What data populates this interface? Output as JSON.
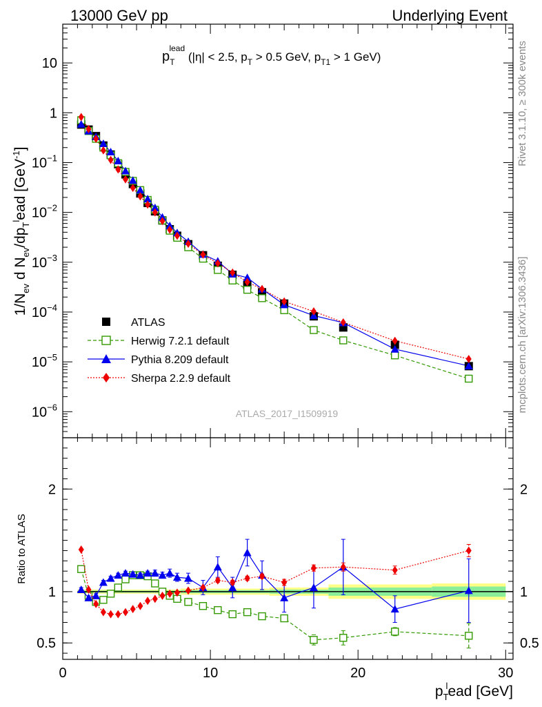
{
  "header": {
    "left": "13000 GeV pp",
    "right": "Underlying Event"
  },
  "side_labels": {
    "rivet": "Rivet 3.1.10, ≥ 300k events",
    "mcplots": "mcplots.cern.ch [arXiv:1306.3436]"
  },
  "watermark": "ATLAS_2017_I1509919",
  "chart_data": [
    {
      "type": "scatter",
      "panel": "main",
      "title_parts": {
        "p": "p",
        "sup": "lead",
        "sub": "T",
        "cond1": " (|η| < 2.5, p",
        "cond1_sub": "T",
        "cond2": " > 0.5 GeV, p",
        "cond2_sub": "T1",
        "cond3": " > 1 GeV)"
      },
      "ylabel": "1/N_ev d N_ev/dp_T^lead [GeV^-1]",
      "ylabel_parts": {
        "a": "1/N",
        "a_sub": "ev",
        "b": " d N",
        "b_sub": "ev",
        "c": "/dp",
        "c_sub": "T",
        "c_sup": "l",
        "d": "ead [GeV",
        "d_sup": "-1",
        "e": "]"
      },
      "yscale": "log",
      "ylim": [
        3e-07,
        60
      ],
      "xlim": [
        0,
        30.5
      ],
      "y_ticks": [
        {
          "v": 10,
          "label": "10"
        },
        {
          "v": 1,
          "label": "1"
        },
        {
          "v": 0.1,
          "m": "10",
          "e": "−1"
        },
        {
          "v": 0.01,
          "m": "10",
          "e": "−2"
        },
        {
          "v": 0.001,
          "m": "10",
          "e": "−3"
        },
        {
          "v": 0.0001,
          "m": "10",
          "e": "−4"
        },
        {
          "v": 1e-05,
          "m": "10",
          "e": "−5"
        },
        {
          "v": 1e-06,
          "m": "10",
          "e": "−6"
        }
      ],
      "x": [
        1.25,
        1.75,
        2.25,
        2.75,
        3.25,
        3.75,
        4.25,
        4.75,
        5.25,
        5.75,
        6.25,
        6.75,
        7.25,
        7.75,
        8.5,
        9.5,
        10.5,
        11.5,
        12.5,
        13.5,
        15.0,
        17.0,
        19.0,
        22.5,
        27.5
      ],
      "series": [
        {
          "name": "ATLAS",
          "color": "#000000",
          "marker": "square-filled",
          "line": "none",
          "values": [
            0.58,
            0.46,
            0.34,
            0.22,
            0.145,
            0.093,
            0.058,
            0.037,
            0.024,
            0.0155,
            0.0105,
            0.0069,
            0.0046,
            0.0034,
            0.0023,
            0.00138,
            0.00085,
            0.00056,
            0.00035,
            0.00025,
            0.000148,
            8.2e-05,
            4.9e-05,
            2.2e-05,
            8.2e-06
          ]
        },
        {
          "name": "Herwig 7.2.1 default",
          "color": "#339900",
          "marker": "square-open",
          "line": "dashed",
          "values": [
            0.71,
            0.43,
            0.3,
            0.2,
            0.14,
            0.097,
            0.065,
            0.043,
            0.028,
            0.0178,
            0.0113,
            0.0069,
            0.0043,
            0.0031,
            0.002,
            0.00118,
            0.0007,
            0.00043,
            0.00028,
            0.00019,
            0.000109,
            4.35e-05,
            2.7e-05,
            1.35e-05,
            4.6e-06
          ]
        },
        {
          "name": "Pythia 8.209 default",
          "color": "#0000ee",
          "marker": "triangle-filled",
          "line": "solid",
          "values": [
            0.59,
            0.43,
            0.33,
            0.24,
            0.164,
            0.108,
            0.068,
            0.044,
            0.028,
            0.0186,
            0.0124,
            0.008,
            0.0054,
            0.0039,
            0.0026,
            0.00144,
            0.00105,
            0.00058,
            0.00049,
            0.00029,
            0.00014,
            8.5e-05,
            6.1e-05,
            1.8e-05,
            8.3e-06
          ]
        },
        {
          "name": "Sherpa 2.2.9 default",
          "color": "#ee0000",
          "marker": "diamond-filled",
          "line": "dotted",
          "values": [
            0.82,
            0.47,
            0.3,
            0.176,
            0.113,
            0.073,
            0.046,
            0.031,
            0.021,
            0.0143,
            0.01,
            0.0067,
            0.0045,
            0.0034,
            0.00235,
            0.00142,
            0.00095,
            0.00062,
            0.0004,
            0.00029,
            0.000163,
            0.000103,
            6.2e-05,
            2.65e-05,
            1.14e-05
          ]
        }
      ],
      "legend_position": "lower-left"
    },
    {
      "type": "scatter",
      "panel": "ratio",
      "ylabel": "Ratio to ATLAS",
      "xlabel": "p_T^lead [GeV]",
      "xlabel_parts": {
        "a": "p",
        "a_sub": "T",
        "a_sup": "l",
        "b": "ead [GeV]"
      },
      "ylim": [
        0.34,
        2.5
      ],
      "xlim": [
        0,
        30.5
      ],
      "y_ticks": [
        {
          "v": 0.5,
          "label": "0.5"
        },
        {
          "v": 1,
          "label": "1"
        },
        {
          "v": 2,
          "label": "2"
        }
      ],
      "x_ticks": [
        {
          "v": 0,
          "label": "0"
        },
        {
          "v": 10,
          "label": "10"
        },
        {
          "v": 20,
          "label": "20"
        },
        {
          "v": 30,
          "label": "30"
        }
      ],
      "x": [
        1.25,
        1.75,
        2.25,
        2.75,
        3.25,
        3.75,
        4.25,
        4.75,
        5.25,
        5.75,
        6.25,
        6.75,
        7.25,
        7.75,
        8.5,
        9.5,
        10.5,
        11.5,
        12.5,
        13.5,
        15.0,
        17.0,
        19.0,
        22.5,
        27.5
      ],
      "uncertainty_band": {
        "stat_color": "#88ee99",
        "total_color": "#ffff88",
        "bins": [
          {
            "x0": 1.0,
            "x1": 8.0,
            "stat": 0.01,
            "total": 0.02
          },
          {
            "x0": 8.0,
            "x1": 14.0,
            "stat": 0.015,
            "total": 0.03
          },
          {
            "x0": 14.0,
            "x1": 18.0,
            "stat": 0.02,
            "total": 0.04
          },
          {
            "x0": 18.0,
            "x1": 25.0,
            "stat": 0.04,
            "total": 0.07
          },
          {
            "x0": 25.0,
            "x1": 30.0,
            "stat": 0.05,
            "total": 0.08
          }
        ]
      },
      "series": [
        {
          "name": "Herwig 7.2.1 default",
          "color": "#339900",
          "marker": "square-open",
          "line": "dashed",
          "values": [
            1.22,
            0.96,
            0.9,
            0.92,
            0.98,
            1.04,
            1.12,
            1.16,
            1.16,
            1.15,
            1.08,
            1.0,
            0.96,
            0.93,
            0.9,
            0.86,
            0.82,
            0.78,
            0.8,
            0.76,
            0.74,
            0.53,
            0.55,
            0.61,
            0.57
          ],
          "err": [
            0.01,
            0.01,
            0.01,
            0.01,
            0.01,
            0.01,
            0.01,
            0.01,
            0.01,
            0.01,
            0.01,
            0.01,
            0.01,
            0.01,
            0.01,
            0.01,
            0.015,
            0.02,
            0.025,
            0.03,
            0.03,
            0.05,
            0.07,
            0.04,
            0.12
          ]
        },
        {
          "name": "Pythia 8.209 default",
          "color": "#0000ee",
          "marker": "triangle-filled",
          "line": "solid",
          "values": [
            1.02,
            0.94,
            0.96,
            1.09,
            1.13,
            1.16,
            1.18,
            1.17,
            1.16,
            1.18,
            1.18,
            1.16,
            1.18,
            1.14,
            1.13,
            1.04,
            1.24,
            1.04,
            1.38,
            1.16,
            0.94,
            1.04,
            1.24,
            0.83,
            1.01
          ],
          "err": [
            0.02,
            0.02,
            0.02,
            0.02,
            0.02,
            0.02,
            0.02,
            0.02,
            0.02,
            0.02,
            0.03,
            0.03,
            0.04,
            0.04,
            0.05,
            0.07,
            0.1,
            0.1,
            0.13,
            0.14,
            0.14,
            0.2,
            0.27,
            0.13,
            0.31
          ]
        },
        {
          "name": "Sherpa 2.2.9 default",
          "color": "#ee0000",
          "marker": "diamond-filled",
          "line": "dotted",
          "values": [
            1.41,
            1.02,
            0.88,
            0.8,
            0.78,
            0.78,
            0.8,
            0.83,
            0.86,
            0.91,
            0.93,
            0.96,
            0.98,
            0.99,
            1.01,
            1.04,
            1.11,
            1.09,
            1.13,
            1.15,
            1.09,
            1.23,
            1.24,
            1.21,
            1.4
          ],
          "err": [
            0.01,
            0.01,
            0.01,
            0.01,
            0.01,
            0.01,
            0.01,
            0.01,
            0.01,
            0.01,
            0.01,
            0.01,
            0.01,
            0.01,
            0.01,
            0.015,
            0.02,
            0.02,
            0.02,
            0.02,
            0.03,
            0.03,
            0.04,
            0.04,
            0.06
          ]
        }
      ]
    }
  ]
}
